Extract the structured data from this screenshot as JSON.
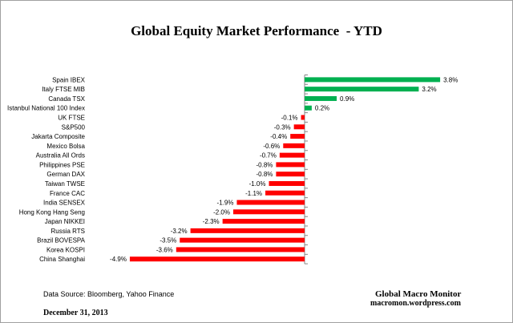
{
  "chart_data": {
    "type": "bar",
    "orientation": "horizontal",
    "title": "Global Equity Market Performance  - YTD",
    "unit": "%",
    "categories": [
      "Spain IBEX",
      "Italy FTSE MIB",
      "Canada TSX",
      "Istanbul National 100 Index",
      "UK FTSE",
      "S&P500",
      "Jakarta Composite",
      "Mexico Bolsa",
      "Australia All Ords",
      "Philippines PSE",
      "German DAX",
      "Taiwan  TWSE",
      "France CAC",
      "India SENSEX",
      "Hong Kong Hang Seng",
      "Japan NIKKEI",
      "Russia RTS",
      "Brazil BOVESPA",
      "Korea KOSPI",
      "China Shanghai"
    ],
    "values": [
      3.8,
      3.2,
      0.9,
      0.2,
      -0.1,
      -0.3,
      -0.4,
      -0.6,
      -0.7,
      -0.8,
      -0.8,
      -1.0,
      -1.1,
      -1.9,
      -2.0,
      -2.3,
      -3.2,
      -3.5,
      -3.6,
      -4.9
    ],
    "data_labels": [
      "3.8%",
      "3.2%",
      "0.9%",
      "0.2%",
      "-0.1%",
      "-0.3%",
      "-0.4%",
      "-0.6%",
      "-0.7%",
      "-0.8%",
      "-0.8%",
      "-1.0%",
      "-1.1%",
      "-1.9%",
      "-2.0%",
      "-2.3%",
      "-3.2%",
      "-3.5%",
      "-3.6%",
      "-4.9%"
    ],
    "colors": {
      "positive": "#00b050",
      "negative": "#ff0000"
    },
    "xlim": [
      -5,
      4
    ],
    "grid": false,
    "legend": "none"
  },
  "footer": {
    "source": "Data Source:  Bloomberg, Yahoo Finance",
    "date": "December 31, 2013",
    "brand": "Global Macro Monitor",
    "site": "macromon.wordpress.com"
  }
}
